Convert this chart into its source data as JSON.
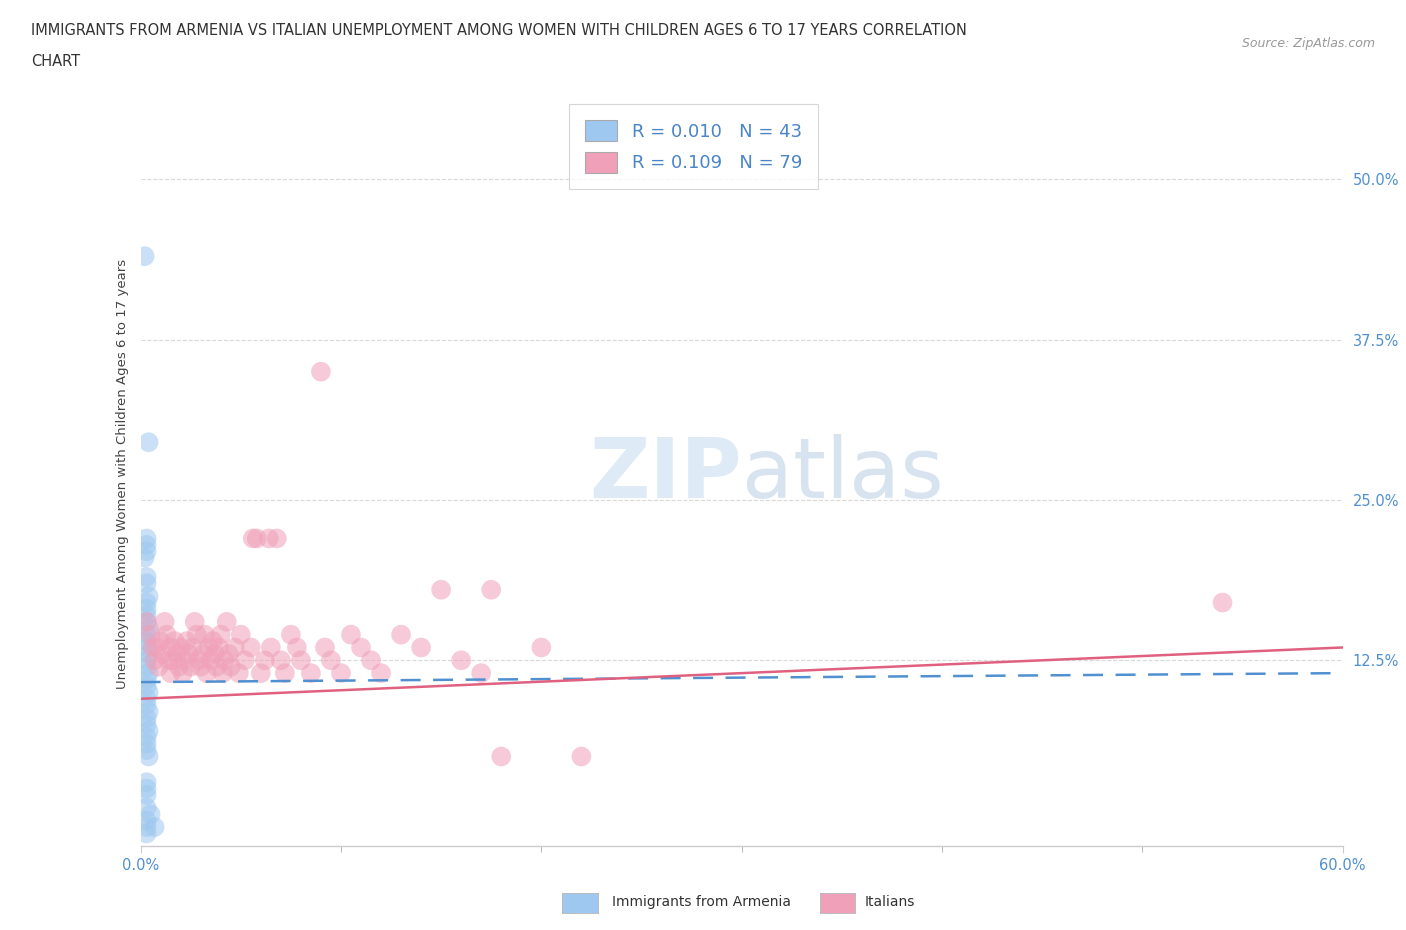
{
  "title_line1": "IMMIGRANTS FROM ARMENIA VS ITALIAN UNEMPLOYMENT AMONG WOMEN WITH CHILDREN AGES 6 TO 17 YEARS CORRELATION",
  "title_line2": "CHART",
  "source": "Source: ZipAtlas.com",
  "ylabel": "Unemployment Among Women with Children Ages 6 to 17 years",
  "xlim": [
    0.0,
    0.6
  ],
  "ylim": [
    -0.02,
    0.56
  ],
  "ytick_labels": [
    "12.5%",
    "25.0%",
    "37.5%",
    "50.0%"
  ],
  "ytick_positions": [
    0.125,
    0.25,
    0.375,
    0.5
  ],
  "legend_entries": [
    {
      "label": "Immigrants from Armenia",
      "color": "#a8c8f0",
      "R": "0.010",
      "N": "43"
    },
    {
      "label": "Italians",
      "color": "#f4a0b0",
      "R": "0.109",
      "N": "79"
    }
  ],
  "armenia_color": "#9ec8f0",
  "italians_color": "#f0a0b8",
  "trendline_armenia_color": "#5090d0",
  "trendline_italians_color": "#e06080",
  "background_color": "#ffffff",
  "armenia_scatter": [
    [
      0.002,
      0.44
    ],
    [
      0.004,
      0.295
    ],
    [
      0.003,
      0.22
    ],
    [
      0.003,
      0.215
    ],
    [
      0.003,
      0.21
    ],
    [
      0.002,
      0.205
    ],
    [
      0.003,
      0.19
    ],
    [
      0.003,
      0.185
    ],
    [
      0.004,
      0.175
    ],
    [
      0.003,
      0.17
    ],
    [
      0.003,
      0.165
    ],
    [
      0.003,
      0.16
    ],
    [
      0.003,
      0.155
    ],
    [
      0.004,
      0.15
    ],
    [
      0.003,
      0.145
    ],
    [
      0.003,
      0.14
    ],
    [
      0.003,
      0.135
    ],
    [
      0.004,
      0.13
    ],
    [
      0.003,
      0.125
    ],
    [
      0.003,
      0.12
    ],
    [
      0.004,
      0.115
    ],
    [
      0.003,
      0.11
    ],
    [
      0.003,
      0.105
    ],
    [
      0.004,
      0.1
    ],
    [
      0.003,
      0.095
    ],
    [
      0.003,
      0.09
    ],
    [
      0.004,
      0.085
    ],
    [
      0.003,
      0.08
    ],
    [
      0.003,
      0.075
    ],
    [
      0.004,
      0.07
    ],
    [
      0.003,
      0.065
    ],
    [
      0.003,
      0.06
    ],
    [
      0.003,
      0.055
    ],
    [
      0.004,
      0.05
    ],
    [
      0.003,
      0.03
    ],
    [
      0.003,
      0.025
    ],
    [
      0.003,
      0.02
    ],
    [
      0.003,
      0.01
    ],
    [
      0.005,
      0.005
    ],
    [
      0.003,
      0.0
    ],
    [
      0.003,
      -0.005
    ],
    [
      0.007,
      -0.005
    ],
    [
      0.003,
      -0.01
    ]
  ],
  "italians_scatter": [
    [
      0.003,
      0.155
    ],
    [
      0.005,
      0.145
    ],
    [
      0.006,
      0.135
    ],
    [
      0.007,
      0.125
    ],
    [
      0.008,
      0.135
    ],
    [
      0.009,
      0.12
    ],
    [
      0.01,
      0.14
    ],
    [
      0.011,
      0.13
    ],
    [
      0.012,
      0.155
    ],
    [
      0.013,
      0.145
    ],
    [
      0.014,
      0.125
    ],
    [
      0.015,
      0.135
    ],
    [
      0.015,
      0.115
    ],
    [
      0.016,
      0.125
    ],
    [
      0.017,
      0.14
    ],
    [
      0.018,
      0.13
    ],
    [
      0.019,
      0.12
    ],
    [
      0.02,
      0.135
    ],
    [
      0.021,
      0.115
    ],
    [
      0.022,
      0.125
    ],
    [
      0.023,
      0.14
    ],
    [
      0.024,
      0.13
    ],
    [
      0.025,
      0.12
    ],
    [
      0.026,
      0.135
    ],
    [
      0.027,
      0.155
    ],
    [
      0.028,
      0.145
    ],
    [
      0.029,
      0.125
    ],
    [
      0.03,
      0.12
    ],
    [
      0.031,
      0.13
    ],
    [
      0.032,
      0.145
    ],
    [
      0.033,
      0.115
    ],
    [
      0.034,
      0.135
    ],
    [
      0.035,
      0.125
    ],
    [
      0.036,
      0.14
    ],
    [
      0.037,
      0.13
    ],
    [
      0.038,
      0.12
    ],
    [
      0.039,
      0.135
    ],
    [
      0.04,
      0.145
    ],
    [
      0.041,
      0.115
    ],
    [
      0.042,
      0.125
    ],
    [
      0.043,
      0.155
    ],
    [
      0.044,
      0.13
    ],
    [
      0.045,
      0.12
    ],
    [
      0.047,
      0.135
    ],
    [
      0.049,
      0.115
    ],
    [
      0.05,
      0.145
    ],
    [
      0.052,
      0.125
    ],
    [
      0.055,
      0.135
    ],
    [
      0.056,
      0.22
    ],
    [
      0.058,
      0.22
    ],
    [
      0.06,
      0.115
    ],
    [
      0.062,
      0.125
    ],
    [
      0.064,
      0.22
    ],
    [
      0.065,
      0.135
    ],
    [
      0.068,
      0.22
    ],
    [
      0.07,
      0.125
    ],
    [
      0.072,
      0.115
    ],
    [
      0.075,
      0.145
    ],
    [
      0.078,
      0.135
    ],
    [
      0.08,
      0.125
    ],
    [
      0.085,
      0.115
    ],
    [
      0.09,
      0.35
    ],
    [
      0.092,
      0.135
    ],
    [
      0.095,
      0.125
    ],
    [
      0.1,
      0.115
    ],
    [
      0.105,
      0.145
    ],
    [
      0.11,
      0.135
    ],
    [
      0.115,
      0.125
    ],
    [
      0.12,
      0.115
    ],
    [
      0.13,
      0.145
    ],
    [
      0.14,
      0.135
    ],
    [
      0.15,
      0.18
    ],
    [
      0.16,
      0.125
    ],
    [
      0.17,
      0.115
    ],
    [
      0.175,
      0.18
    ],
    [
      0.18,
      0.05
    ],
    [
      0.2,
      0.135
    ],
    [
      0.22,
      0.05
    ],
    [
      0.54,
      0.17
    ]
  ]
}
